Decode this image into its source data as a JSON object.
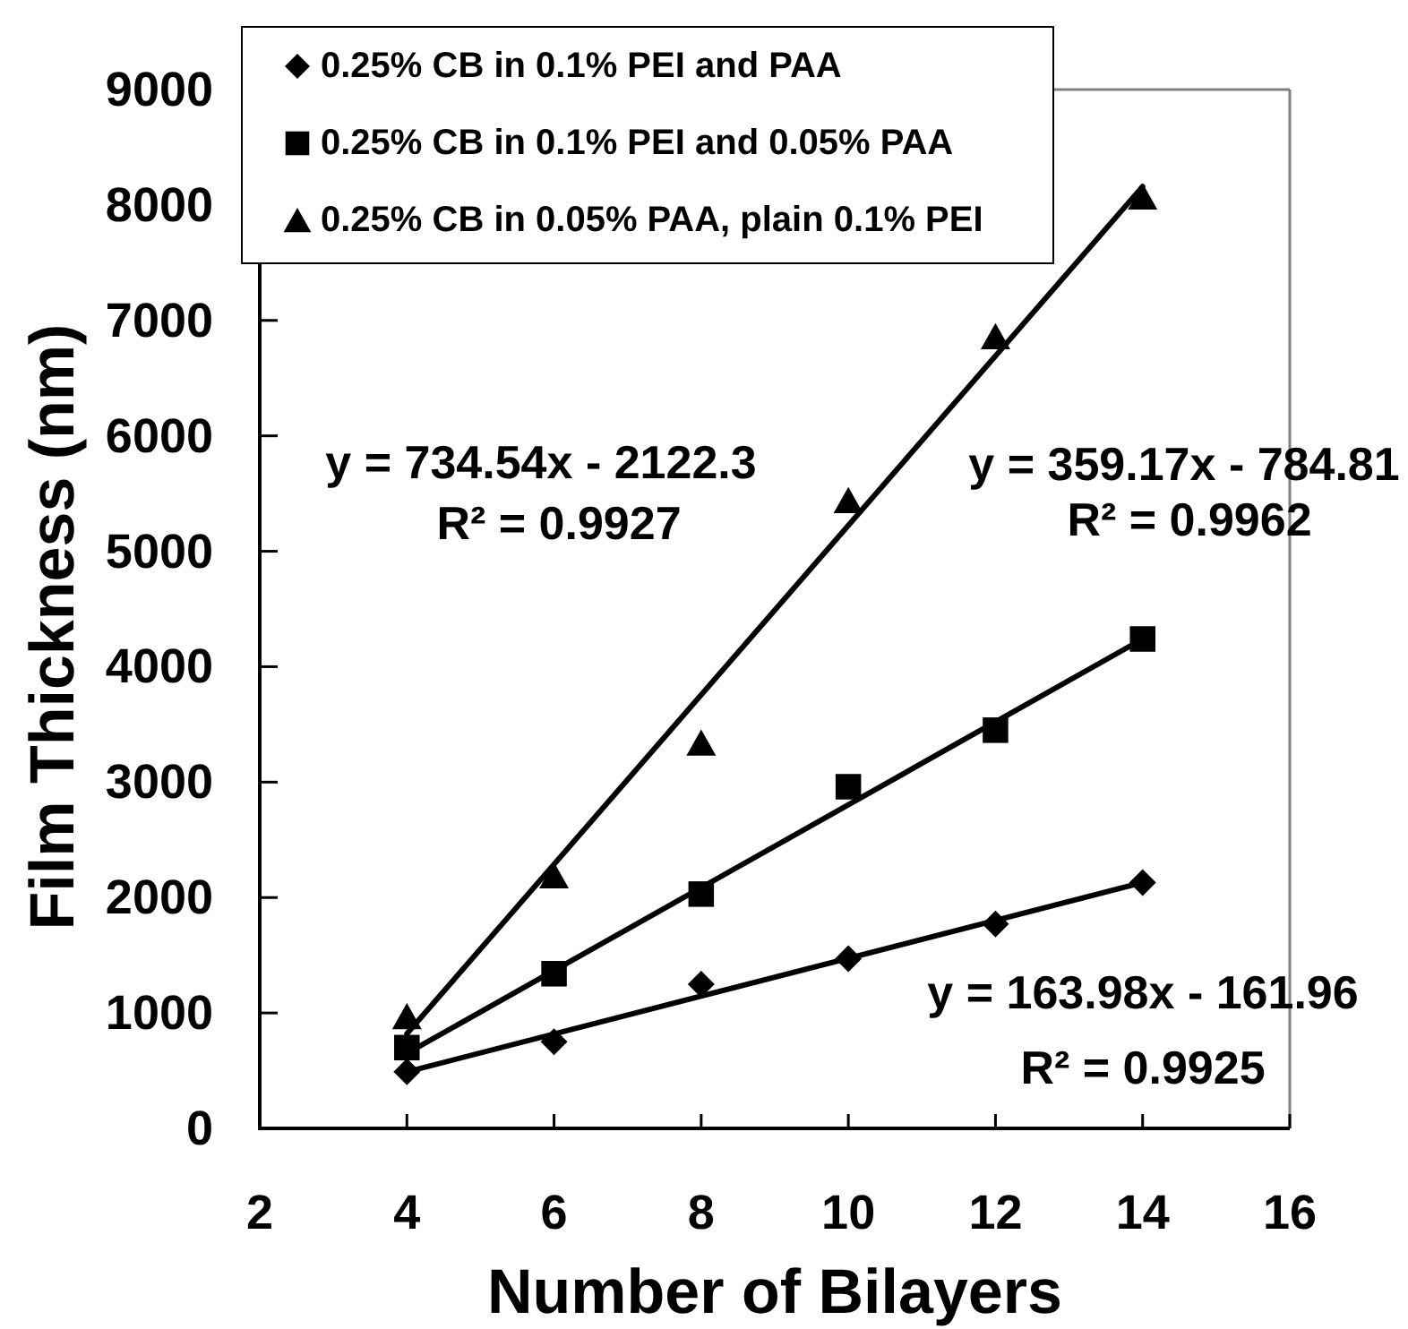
{
  "chart_data": {
    "type": "scatter",
    "xlabel": "Number of Bilayers",
    "ylabel": "Film Thickness (nm)",
    "xlim": [
      2,
      16
    ],
    "xticks": [
      2,
      4,
      6,
      8,
      10,
      12,
      14,
      16
    ],
    "ylim": [
      0,
      9000
    ],
    "yticks": [
      0,
      1000,
      2000,
      3000,
      4000,
      5000,
      6000,
      7000,
      8000,
      9000
    ],
    "legend": "top left",
    "series": [
      {
        "name": "0.25% CB in 0.1% PEI and PAA",
        "marker": "diamond",
        "color": "#000000",
        "x": [
          4,
          6,
          8,
          10,
          12,
          14
        ],
        "values": [
          490,
          750,
          1250,
          1470,
          1770,
          2130
        ]
      },
      {
        "name": "0.25% CB in 0.1% PEI and 0.05% PAA",
        "marker": "square",
        "color": "#000000",
        "x": [
          4,
          6,
          8,
          10,
          12,
          14
        ],
        "values": [
          700,
          1340,
          2030,
          2960,
          3450,
          4240
        ]
      },
      {
        "name": "0.25% CB in 0.05% PAA, plain 0.1% PEI",
        "marker": "triangle",
        "color": "#000000",
        "x": [
          4,
          6,
          8,
          10,
          12,
          14
        ],
        "values": [
          970,
          2190,
          3340,
          5440,
          6860,
          8070
        ]
      },
      {
        "type": "line",
        "color": "#000000",
        "x": [
          4,
          14
        ],
        "values": [
          490,
          2130
        ]
      },
      {
        "type": "line",
        "color": "#000000",
        "x": [
          4,
          14
        ],
        "values": [
          650,
          4240
        ]
      },
      {
        "type": "line",
        "color": "#000000",
        "x": [
          4,
          14
        ],
        "values": [
          820,
          8160
        ]
      }
    ],
    "annotations": [
      "y = 734.54x - 2122.3",
      "R² = 0.9927",
      "y = 359.17x - 784.81",
      "R² = 0.9962",
      "y = 163.98x - 161.96",
      "R² = 0.9925"
    ]
  }
}
